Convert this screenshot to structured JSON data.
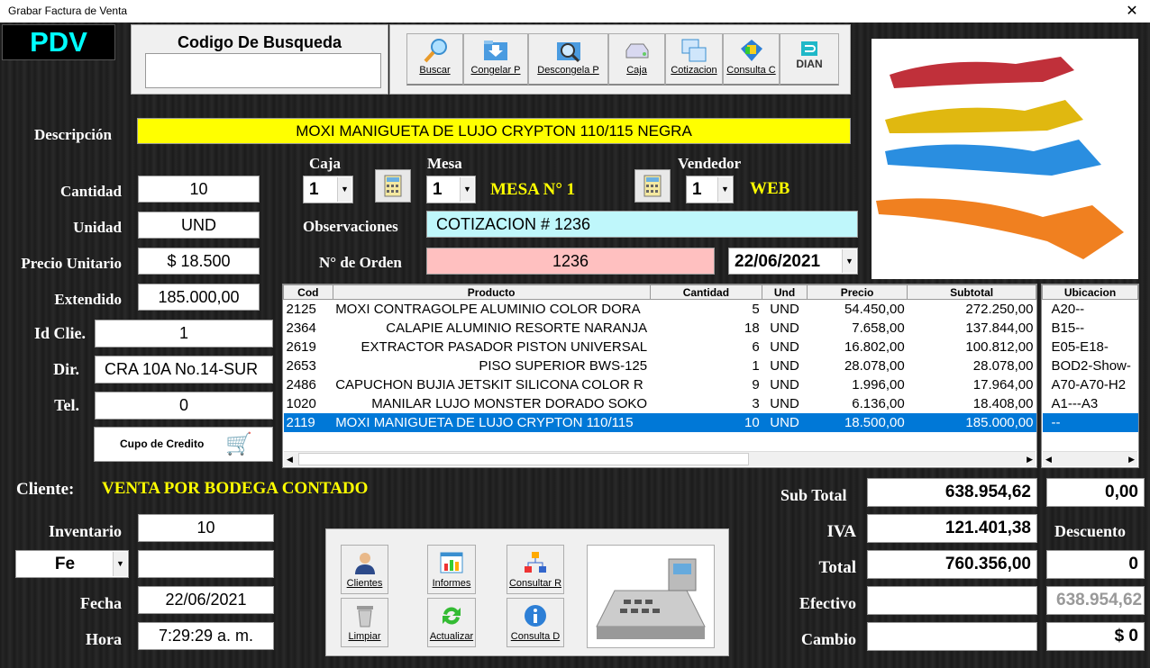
{
  "window": {
    "title": "Grabar Factura de Venta",
    "close": "✕"
  },
  "logo": "PDV",
  "search": {
    "label": "Codigo De Busqueda",
    "value": ""
  },
  "toolbar": [
    {
      "label": "Buscar",
      "icon": "magnifier-icon"
    },
    {
      "label": "Congelar P",
      "icon": "folder-down-icon"
    },
    {
      "label": "Descongela P",
      "icon": "folder-search-icon"
    },
    {
      "label": "Caja",
      "icon": "drive-icon"
    },
    {
      "label": "Cotizacion",
      "icon": "windows-icon"
    },
    {
      "label": "Consulta C",
      "icon": "box-icon"
    },
    {
      "label": "DIAN",
      "icon": "dian-icon"
    }
  ],
  "form": {
    "descripcion_label": "Descripción",
    "descripcion": "MOXI MANIGUETA DE LUJO CRYPTON 110/115 NEGRA",
    "cantidad_label": "Cantidad",
    "cantidad": "10",
    "unidad_label": "Unidad",
    "unidad": "UND",
    "precio_label": "Precio Unitario",
    "precio": "$ 18.500",
    "extendido_label": "Extendido",
    "extendido": "185.000,00",
    "idclie_label": "Id Clie.",
    "idclie": "1",
    "dir_label": "Dir.",
    "dir": "CRA 10A No.14-SUR",
    "tel_label": "Tel.",
    "tel": "0",
    "cupo_label": "Cupo de Credito",
    "caja_label": "Caja",
    "caja": "1",
    "mesa_label": "Mesa",
    "mesa": "1",
    "mesa_text": "MESA N° 1",
    "vendedor_label": "Vendedor",
    "vendedor": "1",
    "vendedor_text": "WEB",
    "obs_label": "Observaciones",
    "obs": "COTIZACION # 1236",
    "orden_label": "N° de Orden",
    "orden": "1236",
    "fecha_sel": "22/06/2021"
  },
  "table": {
    "headers": [
      "Cod",
      "Producto",
      "Cantidad",
      "Und",
      "Precio",
      "Subtotal"
    ],
    "rows": [
      [
        "2125",
        "MOXI CONTRAGOLPE ALUMINIO COLOR DORA",
        "5",
        "UND",
        "54.450,00",
        "272.250,00"
      ],
      [
        "2364",
        "CALAPIE ALUMINIO RESORTE NARANJA",
        "18",
        "UND",
        "7.658,00",
        "137.844,00"
      ],
      [
        "2619",
        "EXTRACTOR PASADOR PISTON UNIVERSAL",
        "6",
        "UND",
        "16.802,00",
        "100.812,00"
      ],
      [
        "2653",
        "PISO SUPERIOR BWS-125",
        "1",
        "UND",
        "28.078,00",
        "28.078,00"
      ],
      [
        "2486",
        "CAPUCHON BUJIA JETSKIT SILICONA COLOR R",
        "9",
        "UND",
        "1.996,00",
        "17.964,00"
      ],
      [
        "1020",
        "MANILAR LUJO MONSTER DORADO SOKO",
        "3",
        "UND",
        "6.136,00",
        "18.408,00"
      ],
      [
        "2119",
        "MOXI MANIGUETA DE LUJO CRYPTON 110/115",
        "10",
        "UND",
        "18.500,00",
        "185.000,00"
      ]
    ],
    "selected": 6,
    "ubic_header": "Ubicacion",
    "ubic": [
      "A20--",
      "B15--",
      "E05-E18-",
      "BOD2-Show-",
      "A70-A70-H2",
      "A1---A3",
      "--"
    ]
  },
  "cliente": {
    "label": "Cliente:",
    "value": "VENTA POR BODEGA CONTADO"
  },
  "inventario": {
    "label": "Inventario",
    "value": "10",
    "fe": "Fe",
    "extra": ""
  },
  "fecha": {
    "label": "Fecha",
    "value": "22/06/2021"
  },
  "hora": {
    "label": "Hora",
    "value": "7:29:29 a. m."
  },
  "actions": [
    {
      "label": "Clientes"
    },
    {
      "label": "Informes"
    },
    {
      "label": "Consultar R"
    },
    {
      "label": "Limpiar"
    },
    {
      "label": "Actualizar"
    },
    {
      "label": "Consulta D"
    }
  ],
  "totals": {
    "subtotal_label": "Sub Total",
    "subtotal": "638.954,62",
    "sub2": "0,00",
    "iva_label": "IVA",
    "iva": "121.401,38",
    "descuento_label": "Descuento",
    "total_label": "Total",
    "total": "760.356,00",
    "descuento": "0",
    "efectivo_label": "Efectivo",
    "efectivo": "",
    "efectivo2": "638.954,62",
    "cambio_label": "Cambio",
    "cambio": "",
    "cambio2": "$ 0"
  },
  "colors": {
    "yellow": "#ffff00",
    "cyan": "#bff7fb",
    "pink": "#ffc0c0",
    "selection": "#0078d7",
    "logo": "#00ffff"
  }
}
